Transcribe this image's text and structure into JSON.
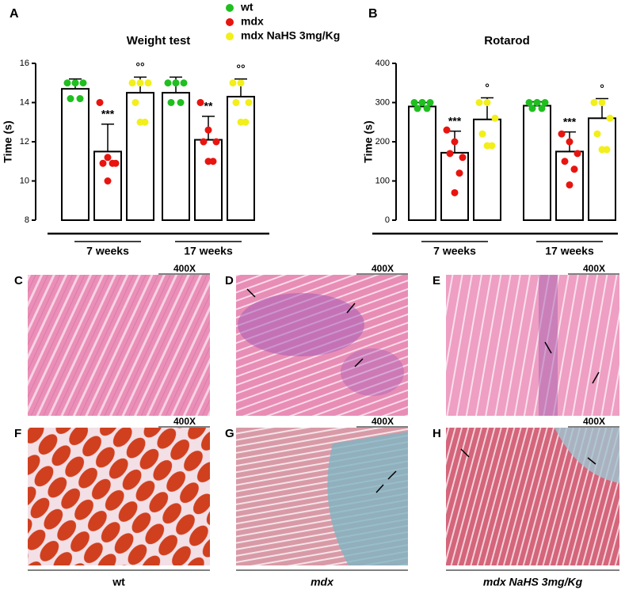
{
  "chart_data": [
    {
      "type": "bar",
      "label": "A",
      "title": "Weight test",
      "y_label": "Time (s)",
      "categories": [
        "7 weeks",
        "17 weeks"
      ],
      "ylim": [
        8,
        16
      ],
      "yticks": [
        8,
        10,
        12,
        14,
        16
      ],
      "series": [
        {
          "name": "wt",
          "color": "#1fbf1f",
          "values": [
            14.7,
            14.5
          ],
          "errors": [
            0.5,
            0.8
          ],
          "points": [
            [
              15.0,
              15.0,
              15.0,
              14.2,
              14.2,
              15.0
            ],
            [
              15.0,
              15.0,
              15.0,
              14.0,
              14.0,
              15.0
            ]
          ]
        },
        {
          "name": "mdx",
          "color": "#e8140f",
          "values": [
            11.5,
            12.1
          ],
          "errors": [
            1.4,
            1.2
          ],
          "points": [
            [
              14.0,
              11.2,
              10.9,
              10.9,
              10.9,
              10.0
            ],
            [
              14.0,
              12.6,
              12.0,
              12.0,
              11.0,
              11.0
            ]
          ],
          "significance": [
            "***",
            "**"
          ]
        },
        {
          "name": "mdx NaHS 3mg/Kg",
          "color": "#f2ef1a",
          "values": [
            14.5,
            14.3
          ],
          "errors": [
            0.8,
            0.9
          ],
          "points": [
            [
              15.0,
              15.0,
              15.0,
              14.0,
              13.0,
              13.0
            ],
            [
              15.0,
              15.0,
              14.0,
              14.0,
              13.0,
              13.0
            ]
          ],
          "significance": [
            "°°",
            "°°"
          ]
        }
      ]
    },
    {
      "type": "bar",
      "label": "B",
      "title": "Rotarod",
      "y_label": "Time (s)",
      "categories": [
        "7 weeks",
        "17 weeks"
      ],
      "ylim": [
        0,
        400
      ],
      "yticks": [
        0,
        100,
        200,
        300,
        400
      ],
      "series": [
        {
          "color": "#1fbf1f",
          "values": [
            290,
            292
          ],
          "errors": [
            10,
            10
          ],
          "points": [
            [
              300,
              300,
              300,
              285,
              285,
              300
            ],
            [
              300,
              300,
              300,
              285,
              285,
              300
            ]
          ]
        },
        {
          "color": "#e8140f",
          "values": [
            172,
            175
          ],
          "errors": [
            55,
            50
          ],
          "points": [
            [
              230,
              200,
              160,
              170,
              120,
              70
            ],
            [
              220,
              200,
              170,
              150,
              130,
              90
            ]
          ],
          "significance": [
            "***",
            "***"
          ]
        },
        {
          "color": "#f2ef1a",
          "values": [
            257,
            260
          ],
          "errors": [
            55,
            50
          ],
          "points": [
            [
              300,
              300,
              260,
              220,
              190,
              190
            ],
            [
              300,
              300,
              260,
              220,
              180,
              180
            ]
          ],
          "significance": [
            "°",
            "°"
          ]
        }
      ]
    }
  ],
  "panels": [
    {
      "letter": "C",
      "magnification": "400X"
    },
    {
      "letter": "D",
      "magnification": "400X"
    },
    {
      "letter": "E",
      "magnification": "400X"
    },
    {
      "letter": "F",
      "magnification": "400X"
    },
    {
      "letter": "G",
      "magnification": "400X"
    },
    {
      "letter": "H",
      "magnification": "400X"
    }
  ],
  "captions": [
    "wt",
    "mdx",
    "mdx NaHS 3mg/Kg"
  ]
}
